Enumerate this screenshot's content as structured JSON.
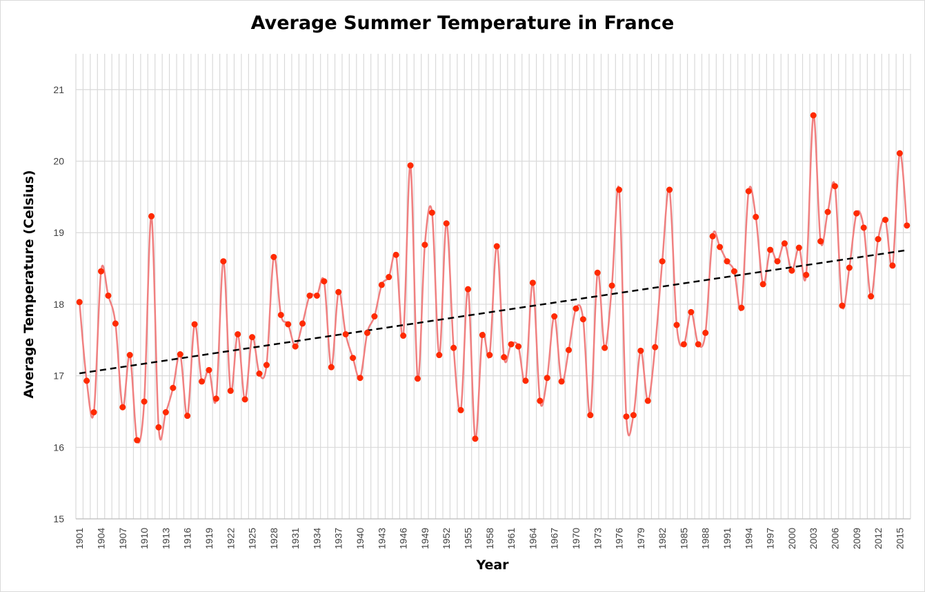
{
  "chart_data": {
    "type": "line",
    "title": "Average Summer Temperature in France",
    "xlabel": "Year",
    "ylabel": "Average Temperature (Celsius)",
    "ylim": [
      15,
      21.5
    ],
    "y_ticks": [
      15,
      16,
      17,
      18,
      19,
      20,
      21
    ],
    "x_tick_labels": [
      "1901",
      "1904",
      "1907",
      "1910",
      "1913",
      "1916",
      "1919",
      "1922",
      "1925",
      "1928",
      "1931",
      "1934",
      "1937",
      "1940",
      "1943",
      "1946",
      "1949",
      "1952",
      "1955",
      "1958",
      "1961",
      "1964",
      "1967",
      "1970",
      "1973",
      "1976",
      "1979",
      "1982",
      "1985",
      "1988",
      "1991",
      "1994",
      "1997",
      "2000",
      "2003",
      "2006",
      "2009",
      "2012",
      "2015"
    ],
    "grid": "on",
    "legend": "none",
    "x": [
      1901,
      1902,
      1903,
      1904,
      1905,
      1906,
      1907,
      1908,
      1909,
      1910,
      1911,
      1912,
      1913,
      1914,
      1915,
      1916,
      1917,
      1918,
      1919,
      1920,
      1921,
      1922,
      1923,
      1924,
      1925,
      1926,
      1927,
      1928,
      1929,
      1930,
      1931,
      1932,
      1933,
      1934,
      1935,
      1936,
      1937,
      1938,
      1939,
      1940,
      1941,
      1942,
      1943,
      1944,
      1945,
      1946,
      1947,
      1948,
      1949,
      1950,
      1951,
      1952,
      1953,
      1954,
      1955,
      1956,
      1957,
      1958,
      1959,
      1960,
      1961,
      1962,
      1963,
      1964,
      1965,
      1966,
      1967,
      1968,
      1969,
      1970,
      1971,
      1972,
      1973,
      1974,
      1975,
      1976,
      1977,
      1978,
      1979,
      1980,
      1981,
      1982,
      1983,
      1984,
      1985,
      1986,
      1987,
      1988,
      1989,
      1990,
      1991,
      1992,
      1993,
      1994,
      1995,
      1996,
      1997,
      1998,
      1999,
      2000,
      2001,
      2002,
      2003,
      2004,
      2005,
      2006,
      2007,
      2008,
      2009,
      2010,
      2011,
      2012,
      2013,
      2014,
      2015,
      2016
    ],
    "series": [
      {
        "values": [
          18.03,
          16.93,
          16.49,
          18.46,
          18.12,
          17.73,
          16.56,
          17.29,
          16.1,
          16.64,
          19.23,
          16.28,
          16.49,
          16.83,
          17.3,
          16.44,
          17.72,
          16.92,
          17.08,
          16.68,
          18.6,
          16.79,
          17.58,
          16.67,
          17.54,
          17.03,
          17.15,
          18.66,
          17.85,
          17.72,
          17.41,
          17.73,
          18.12,
          18.12,
          18.32,
          17.12,
          18.17,
          17.58,
          17.25,
          16.97,
          17.6,
          17.83,
          18.27,
          18.38,
          18.69,
          17.56,
          19.94,
          16.96,
          18.83,
          19.28,
          17.29,
          19.13,
          17.39,
          16.52,
          18.21,
          16.12,
          17.57,
          17.29,
          18.81,
          17.26,
          17.44,
          17.41,
          16.93,
          18.3,
          16.65,
          16.97,
          17.83,
          16.92,
          17.36,
          17.94,
          17.79,
          16.45,
          18.44,
          17.39,
          18.26,
          19.6,
          16.43,
          16.45,
          17.35,
          16.65,
          17.4,
          18.6,
          19.6,
          17.71,
          17.44,
          17.89,
          17.44,
          17.6,
          18.95,
          18.8,
          18.6,
          18.46,
          17.95,
          19.58,
          19.22,
          18.28,
          18.76,
          18.6,
          18.85,
          18.47,
          18.79,
          18.41,
          20.64,
          18.88,
          19.29,
          19.65,
          17.98,
          18.51,
          19.27,
          19.07,
          18.11,
          18.91,
          19.18,
          18.54,
          20.11,
          19.1
        ]
      }
    ],
    "trendline": {
      "type": "linear",
      "style": "dashed"
    },
    "colors": {
      "series_line": "#f08080",
      "series_marker": "#ff2a00",
      "trendline": "#000000",
      "grid": "#d9d9d9"
    }
  }
}
